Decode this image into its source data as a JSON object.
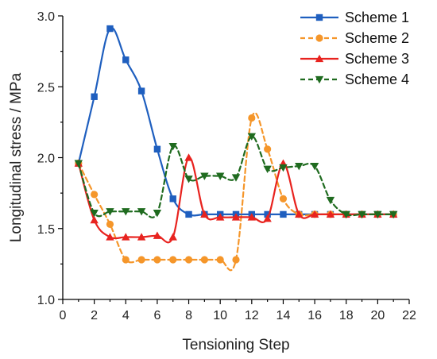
{
  "chart_data": {
    "type": "line",
    "title": "",
    "xlabel": "Tensioning Step",
    "ylabel": "Longitudinal stress / MPa",
    "xlim": [
      0,
      22
    ],
    "ylim": [
      1.0,
      3.0
    ],
    "xticks": [
      0,
      2,
      4,
      6,
      8,
      10,
      12,
      14,
      16,
      18,
      20,
      22
    ],
    "xtick_labels": [
      "0",
      "2",
      "4",
      "6",
      "8",
      "10",
      "12",
      "14",
      "16",
      "18",
      "20",
      "22"
    ],
    "yticks": [
      1.0,
      1.5,
      2.0,
      2.5,
      3.0
    ],
    "ytick_labels": [
      "1.0",
      "1.5",
      "2.0",
      "2.5",
      "3.0"
    ],
    "grid": false,
    "legend_position": "top-right",
    "x": [
      1,
      2,
      3,
      4,
      5,
      6,
      7,
      8,
      9,
      10,
      11,
      12,
      13,
      14,
      15,
      16,
      17,
      18,
      19,
      20,
      21
    ],
    "series": [
      {
        "name": "Scheme 1",
        "color": "#1f5fbf",
        "dash": "solid",
        "marker": "square",
        "values": [
          1.96,
          2.43,
          2.91,
          2.69,
          2.47,
          2.06,
          1.71,
          1.6,
          1.6,
          1.6,
          1.6,
          1.6,
          1.6,
          1.6,
          1.6,
          1.6,
          1.6,
          1.6,
          1.6,
          1.6,
          1.6
        ]
      },
      {
        "name": "Scheme 2",
        "color": "#f5962a",
        "dash": "dashed",
        "marker": "circle",
        "values": [
          1.96,
          1.74,
          1.53,
          1.28,
          1.28,
          1.28,
          1.28,
          1.28,
          1.28,
          1.28,
          1.28,
          2.28,
          2.06,
          1.71,
          1.6,
          1.6,
          1.6,
          1.6,
          1.6,
          1.6,
          1.6
        ]
      },
      {
        "name": "Scheme 3",
        "color": "#e8231f",
        "dash": "solid",
        "marker": "triangle-up",
        "values": [
          1.96,
          1.56,
          1.44,
          1.44,
          1.44,
          1.45,
          1.44,
          2.0,
          1.6,
          1.58,
          1.58,
          1.58,
          1.57,
          1.96,
          1.6,
          1.6,
          1.6,
          1.6,
          1.6,
          1.6,
          1.6
        ]
      },
      {
        "name": "Scheme 4",
        "color": "#1f6b1f",
        "dash": "dashed",
        "marker": "triangle-down",
        "values": [
          1.96,
          1.61,
          1.62,
          1.62,
          1.62,
          1.61,
          2.08,
          1.85,
          1.87,
          1.87,
          1.86,
          2.15,
          1.92,
          1.93,
          1.94,
          1.94,
          1.7,
          1.6,
          1.6,
          1.6,
          1.6
        ]
      }
    ]
  }
}
